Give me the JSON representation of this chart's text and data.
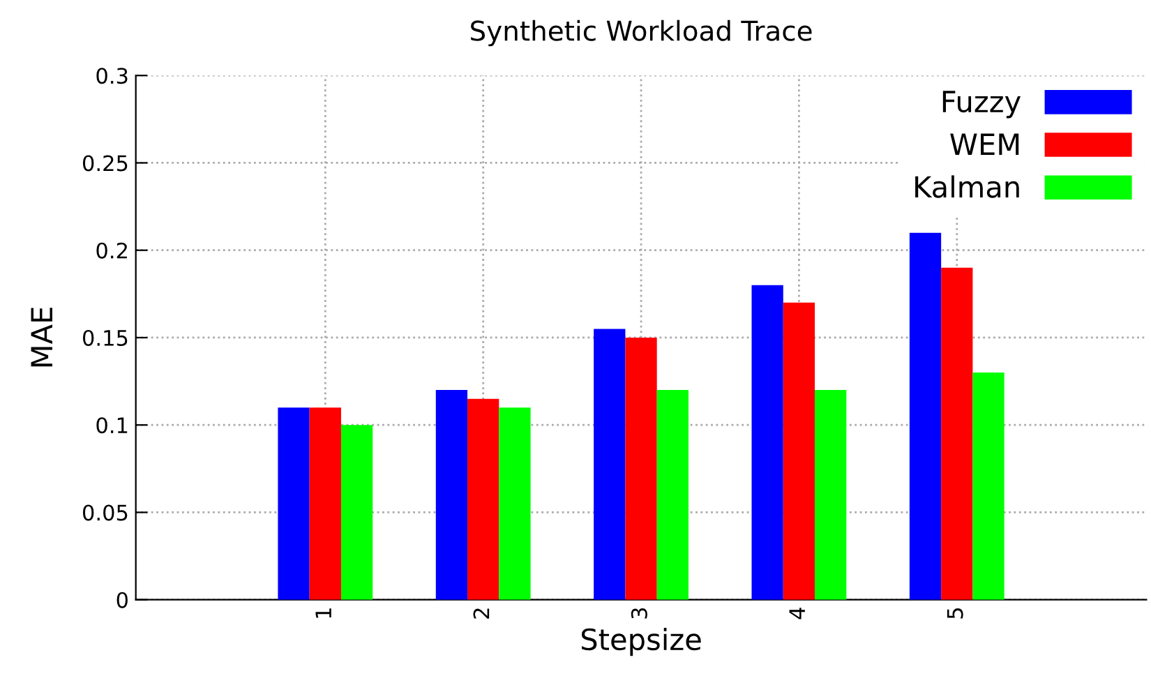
{
  "chart_data": {
    "type": "bar",
    "title": "Synthetic Workload Trace",
    "xlabel": "Stepsize",
    "ylabel": "MAE",
    "categories": [
      "1",
      "2",
      "3",
      "4",
      "5"
    ],
    "series": [
      {
        "name": "Fuzzy",
        "color": "#0000ff",
        "values": [
          0.11,
          0.12,
          0.155,
          0.18,
          0.21
        ]
      },
      {
        "name": "WEM",
        "color": "#ff0000",
        "values": [
          0.11,
          0.115,
          0.15,
          0.17,
          0.19
        ]
      },
      {
        "name": "Kalman",
        "color": "#00ff00",
        "values": [
          0.1,
          0.11,
          0.12,
          0.12,
          0.13
        ]
      }
    ],
    "ylim": [
      0,
      0.3
    ],
    "yticks": [
      0,
      0.05,
      0.1,
      0.15,
      0.2,
      0.25,
      0.3
    ],
    "grid": true,
    "legend": "top right"
  }
}
